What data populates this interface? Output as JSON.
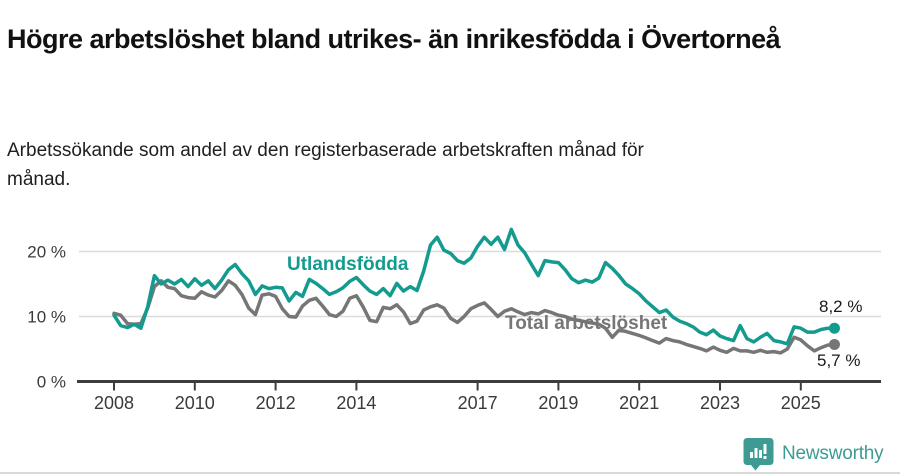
{
  "header": {
    "title": "Högre arbetslöshet bland utrikes- än inrikesfödda i Övertorneå",
    "subtitle": "Arbetssökande som andel av den registerbaserade arbetskraften månad för månad."
  },
  "footer": {
    "brand": "Newsworthy",
    "logo_icon": "bar-chart-speech-bubble-icon"
  },
  "colors": {
    "foreign_born_line": "#149b8f",
    "total_line": "#767676",
    "grid": "#dcdcdc",
    "axis": "#3d3d3d",
    "tick_text": "#3a3a3a",
    "brand": "#3d9b94"
  },
  "chart_data": {
    "type": "line",
    "title": "Högre arbetslöshet bland utrikes- än inrikesfödda i Övertorneå",
    "subtitle": "Arbetssökande som andel av den registerbaserade arbetskraften månad för månad.",
    "unit": "%",
    "xlabel": "",
    "ylabel": "",
    "grid": "horizontal-only",
    "legend_position": "inline-labels-on-lines",
    "xlim": [
      2008,
      2026
    ],
    "ylim": [
      0,
      24
    ],
    "x_ticks": [
      2008,
      2010,
      2012,
      2014,
      2017,
      2019,
      2021,
      2023,
      2025
    ],
    "y_ticks": [
      {
        "value": 0,
        "label": "0 %"
      },
      {
        "value": 10,
        "label": "10 %"
      },
      {
        "value": 20,
        "label": "20 %"
      }
    ],
    "x_resolution": "monthly data, values estimated from plot at ~2-month steps (decimal years)",
    "x": [
      2008.0,
      2008.167,
      2008.333,
      2008.5,
      2008.667,
      2008.833,
      2009.0,
      2009.167,
      2009.333,
      2009.5,
      2009.667,
      2009.833,
      2010.0,
      2010.167,
      2010.333,
      2010.5,
      2010.667,
      2010.833,
      2011.0,
      2011.167,
      2011.333,
      2011.5,
      2011.667,
      2011.833,
      2012.0,
      2012.167,
      2012.333,
      2012.5,
      2012.667,
      2012.833,
      2013.0,
      2013.167,
      2013.333,
      2013.5,
      2013.667,
      2013.833,
      2014.0,
      2014.167,
      2014.333,
      2014.5,
      2014.667,
      2014.833,
      2015.0,
      2015.167,
      2015.333,
      2015.5,
      2015.667,
      2015.833,
      2016.0,
      2016.167,
      2016.333,
      2016.5,
      2016.667,
      2016.833,
      2017.0,
      2017.167,
      2017.333,
      2017.5,
      2017.667,
      2017.833,
      2018.0,
      2018.167,
      2018.333,
      2018.5,
      2018.667,
      2018.833,
      2019.0,
      2019.167,
      2019.333,
      2019.5,
      2019.667,
      2019.833,
      2020.0,
      2020.167,
      2020.333,
      2020.5,
      2020.667,
      2020.833,
      2021.0,
      2021.167,
      2021.333,
      2021.5,
      2021.667,
      2021.833,
      2022.0,
      2022.167,
      2022.333,
      2022.5,
      2022.667,
      2022.833,
      2023.0,
      2023.167,
      2023.333,
      2023.5,
      2023.667,
      2023.833,
      2024.0,
      2024.167,
      2024.333,
      2024.5,
      2024.667,
      2024.833,
      2025.0,
      2025.167,
      2025.333,
      2025.5,
      2025.667,
      2025.833
    ],
    "series": [
      {
        "name": "Utlandsfödda",
        "color": "#149b8f",
        "end_label": "8,2 %",
        "end_value": 8.2,
        "values": [
          10.2,
          8.6,
          8.3,
          8.8,
          8.2,
          11.5,
          16.3,
          15.0,
          15.6,
          15.0,
          15.7,
          14.6,
          15.8,
          14.8,
          15.5,
          14.3,
          15.6,
          17.2,
          18.0,
          16.6,
          15.5,
          13.4,
          14.7,
          14.3,
          14.5,
          14.4,
          12.4,
          13.7,
          13.1,
          15.7,
          15.1,
          14.3,
          13.4,
          13.8,
          14.4,
          15.4,
          16.0,
          14.9,
          13.9,
          13.4,
          14.3,
          13.2,
          15.1,
          13.9,
          14.6,
          14.0,
          17.0,
          21.0,
          22.2,
          20.2,
          19.7,
          18.6,
          18.2,
          19.0,
          20.8,
          22.2,
          21.1,
          22.2,
          20.3,
          23.4,
          21.0,
          19.8,
          18.0,
          16.3,
          18.6,
          18.4,
          18.3,
          17.2,
          15.8,
          15.2,
          15.6,
          15.3,
          15.9,
          18.3,
          17.4,
          16.3,
          15.0,
          14.3,
          13.5,
          12.4,
          11.5,
          10.6,
          11.0,
          9.9,
          9.3,
          8.9,
          8.4,
          7.6,
          7.2,
          7.9,
          7.0,
          6.6,
          6.3,
          8.6,
          6.6,
          6.1,
          6.8,
          7.4,
          6.3,
          6.1,
          5.8,
          8.4,
          8.2,
          7.6,
          7.6,
          8.0,
          8.2,
          8.2
        ]
      },
      {
        "name": "Total arbetslöshet",
        "color": "#767676",
        "end_label": "5,7 %",
        "end_value": 5.7,
        "values": [
          10.5,
          10.2,
          8.9,
          8.8,
          8.9,
          11.3,
          14.6,
          15.5,
          14.5,
          14.3,
          13.2,
          12.9,
          12.8,
          13.8,
          13.3,
          13.0,
          14.0,
          15.5,
          14.8,
          13.4,
          11.3,
          10.3,
          13.3,
          13.5,
          13.1,
          11.2,
          10.0,
          9.9,
          11.6,
          12.5,
          12.8,
          11.6,
          10.3,
          10.0,
          10.8,
          12.8,
          13.2,
          11.5,
          9.4,
          9.2,
          11.4,
          11.2,
          11.8,
          10.7,
          8.9,
          9.3,
          11.0,
          11.5,
          11.8,
          11.3,
          9.7,
          9.1,
          10.0,
          11.2,
          11.7,
          12.1,
          11.1,
          10.0,
          10.8,
          11.2,
          10.7,
          10.3,
          10.6,
          10.4,
          10.9,
          10.6,
          10.2,
          10.0,
          9.6,
          9.4,
          9.2,
          9.0,
          8.8,
          8.2,
          6.8,
          7.9,
          7.7,
          7.4,
          7.1,
          6.7,
          6.3,
          5.9,
          6.6,
          6.3,
          6.1,
          5.7,
          5.4,
          5.1,
          4.7,
          5.3,
          4.8,
          4.5,
          5.1,
          4.7,
          4.7,
          4.5,
          4.8,
          4.5,
          4.6,
          4.4,
          5.0,
          6.8,
          6.4,
          5.5,
          4.7,
          5.2,
          5.6,
          5.7
        ]
      }
    ]
  }
}
